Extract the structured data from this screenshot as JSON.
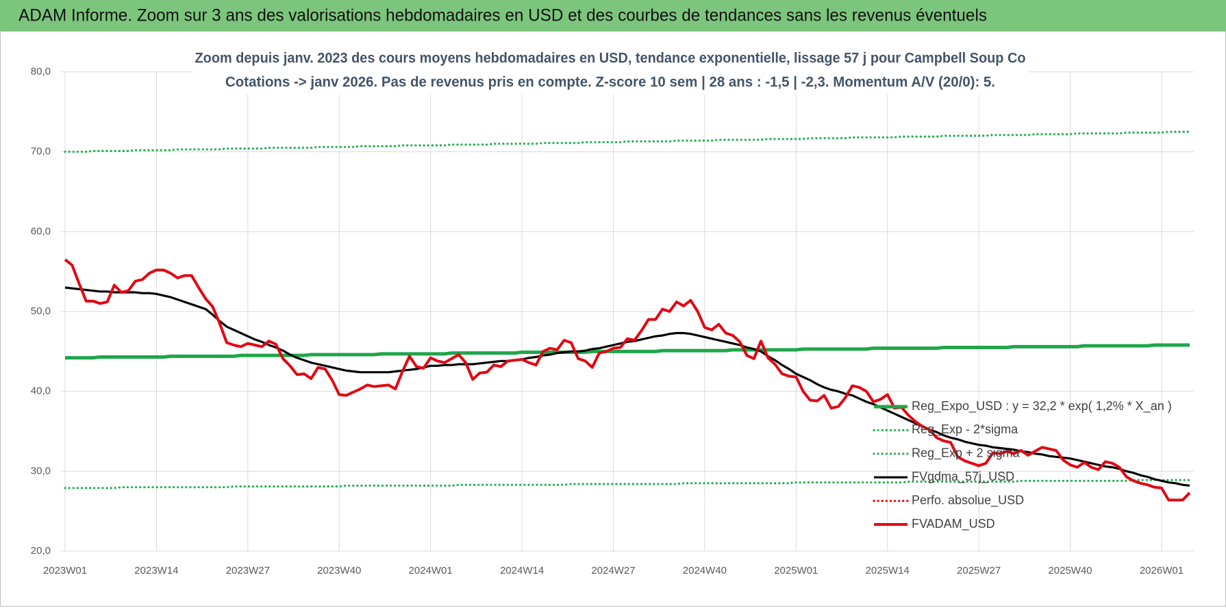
{
  "header": {
    "title": "ADAM Informe. Zoom sur 3 ans des valorisations hebdomadaires en USD et des courbes de tendances sans les revenus éventuels"
  },
  "chart_data": {
    "type": "line",
    "title": [
      "Zoom depuis janv. 2023 des cours moyens hebdomadaires en USD, tendance exponentielle, lissage 57 j pour Campbell Soup Co",
      "Cotations -> janv 2026. Pas de revenus pris en compte. Z-score 10 sem | 28 ans : -1,5 | -2,3. Momentum A/V (20/0): 5."
    ],
    "categories": [
      "2023W01",
      null,
      null,
      null,
      null,
      null,
      null,
      null,
      null,
      null,
      null,
      null,
      null,
      "2023W14",
      null,
      null,
      null,
      null,
      null,
      null,
      null,
      null,
      null,
      null,
      null,
      null,
      "2023W27",
      null,
      null,
      null,
      null,
      null,
      null,
      null,
      null,
      null,
      null,
      null,
      null,
      "2023W40",
      null,
      null,
      null,
      null,
      null,
      null,
      null,
      null,
      null,
      null,
      null,
      null,
      "2024W01",
      null,
      null,
      null,
      null,
      null,
      null,
      null,
      null,
      null,
      null,
      null,
      null,
      "2024W14",
      null,
      null,
      null,
      null,
      null,
      null,
      null,
      null,
      null,
      null,
      null,
      null,
      "2024W27",
      null,
      null,
      null,
      null,
      null,
      null,
      null,
      null,
      null,
      null,
      null,
      null,
      "2024W40",
      null,
      null,
      null,
      null,
      null,
      null,
      null,
      null,
      null,
      null,
      null,
      null,
      "2025W01",
      null,
      null,
      null,
      null,
      null,
      null,
      null,
      null,
      null,
      null,
      null,
      null,
      "2025W14",
      null,
      null,
      null,
      null,
      null,
      null,
      null,
      null,
      null,
      null,
      null,
      null,
      "2025W27",
      null,
      null,
      null,
      null,
      null,
      null,
      null,
      null,
      null,
      null,
      null,
      null,
      "2025W40",
      null,
      null,
      null,
      null,
      null,
      null,
      null,
      null,
      null,
      null,
      null,
      null,
      "2026W01",
      null,
      null,
      null,
      null
    ],
    "ylim": [
      20,
      80
    ],
    "yticks": [
      {
        "value": 20,
        "label": "20,0"
      },
      {
        "value": 30,
        "label": "30,0"
      },
      {
        "value": 40,
        "label": "40,0"
      },
      {
        "value": 50,
        "label": "50,0"
      },
      {
        "value": 60,
        "label": "60,0"
      },
      {
        "value": 70,
        "label": "70,0"
      },
      {
        "value": 80,
        "label": "80,0"
      }
    ],
    "grid": true,
    "legend": "bottom-right",
    "series": [
      {
        "name": "Reg_Expo_USD : y = 32,2 * exp( 1,2% * X_an )",
        "color": "#1fa64a",
        "style": "solid",
        "values": [
          44.2,
          44.2,
          44.2,
          44.2,
          44.2,
          44.3,
          44.3,
          44.3,
          44.3,
          44.3,
          44.3,
          44.3,
          44.3,
          44.3,
          44.3,
          44.4,
          44.4,
          44.4,
          44.4,
          44.4,
          44.4,
          44.4,
          44.4,
          44.4,
          44.4,
          44.5,
          44.5,
          44.5,
          44.5,
          44.5,
          44.5,
          44.5,
          44.5,
          44.5,
          44.5,
          44.6,
          44.6,
          44.6,
          44.6,
          44.6,
          44.6,
          44.6,
          44.6,
          44.6,
          44.6,
          44.7,
          44.7,
          44.7,
          44.7,
          44.7,
          44.7,
          44.7,
          44.7,
          44.7,
          44.7,
          44.8,
          44.8,
          44.8,
          44.8,
          44.8,
          44.8,
          44.8,
          44.8,
          44.8,
          44.8,
          44.9,
          44.9,
          44.9,
          44.9,
          44.9,
          44.9,
          44.9,
          44.9,
          44.9,
          44.9,
          45.0,
          45.0,
          45.0,
          45.0,
          45.0,
          45.0,
          45.0,
          45.0,
          45.0,
          45.0,
          45.1,
          45.1,
          45.1,
          45.1,
          45.1,
          45.1,
          45.1,
          45.1,
          45.1,
          45.1,
          45.2,
          45.2,
          45.2,
          45.2,
          45.2,
          45.2,
          45.2,
          45.2,
          45.2,
          45.2,
          45.3,
          45.3,
          45.3,
          45.3,
          45.3,
          45.3,
          45.3,
          45.3,
          45.3,
          45.3,
          45.4,
          45.4,
          45.4,
          45.4,
          45.4,
          45.4,
          45.4,
          45.4,
          45.4,
          45.4,
          45.5,
          45.5,
          45.5,
          45.5,
          45.5,
          45.5,
          45.5,
          45.5,
          45.5,
          45.5,
          45.6,
          45.6,
          45.6,
          45.6,
          45.6,
          45.6,
          45.6,
          45.6,
          45.6,
          45.6,
          45.7,
          45.7,
          45.7,
          45.7,
          45.7,
          45.7,
          45.7,
          45.7,
          45.7,
          45.7,
          45.8,
          45.8,
          45.8,
          45.8,
          45.8,
          45.8
        ]
      },
      {
        "name": "Reg_Exp - 2*sigma",
        "color": "#1fb04e",
        "style": "dotted",
        "values": [
          27.9,
          27.9,
          27.9,
          27.9,
          27.9,
          27.9,
          27.9,
          27.9,
          28.0,
          28.0,
          28.0,
          28.0,
          28.0,
          28.0,
          28.0,
          28.0,
          28.0,
          28.0,
          28.0,
          28.0,
          28.0,
          28.0,
          28.0,
          28.0,
          28.1,
          28.1,
          28.1,
          28.1,
          28.1,
          28.1,
          28.1,
          28.1,
          28.1,
          28.1,
          28.1,
          28.1,
          28.1,
          28.1,
          28.1,
          28.1,
          28.2,
          28.2,
          28.2,
          28.2,
          28.2,
          28.2,
          28.2,
          28.2,
          28.2,
          28.2,
          28.2,
          28.2,
          28.2,
          28.2,
          28.2,
          28.2,
          28.3,
          28.3,
          28.3,
          28.3,
          28.3,
          28.3,
          28.3,
          28.3,
          28.3,
          28.3,
          28.3,
          28.3,
          28.3,
          28.3,
          28.3,
          28.3,
          28.4,
          28.4,
          28.4,
          28.4,
          28.4,
          28.4,
          28.4,
          28.4,
          28.4,
          28.4,
          28.4,
          28.4,
          28.4,
          28.4,
          28.4,
          28.4,
          28.5,
          28.5,
          28.5,
          28.5,
          28.5,
          28.5,
          28.5,
          28.5,
          28.5,
          28.5,
          28.5,
          28.5,
          28.5,
          28.5,
          28.5,
          28.5,
          28.6,
          28.6,
          28.6,
          28.6,
          28.6,
          28.6,
          28.6,
          28.6,
          28.6,
          28.6,
          28.6,
          28.6,
          28.6,
          28.6,
          28.6,
          28.6,
          28.7,
          28.7,
          28.7,
          28.7,
          28.7,
          28.7,
          28.7,
          28.7,
          28.7,
          28.7,
          28.7,
          28.7,
          28.7,
          28.7,
          28.7,
          28.7,
          28.8,
          28.8,
          28.8,
          28.8,
          28.8,
          28.8,
          28.8,
          28.8,
          28.8,
          28.8,
          28.8,
          28.8,
          28.8,
          28.8,
          28.8,
          28.8,
          28.9,
          28.9,
          28.9,
          28.9,
          28.9,
          28.9,
          28.9,
          28.9,
          28.9
        ]
      },
      {
        "name": "Reg_Exp + 2 sigma",
        "color": "#1fb04e",
        "style": "dotted",
        "values": [
          70.0,
          70.0,
          70.0,
          70.0,
          70.1,
          70.1,
          70.1,
          70.1,
          70.1,
          70.1,
          70.2,
          70.2,
          70.2,
          70.2,
          70.2,
          70.2,
          70.3,
          70.3,
          70.3,
          70.3,
          70.3,
          70.3,
          70.3,
          70.4,
          70.4,
          70.4,
          70.4,
          70.4,
          70.4,
          70.5,
          70.5,
          70.5,
          70.5,
          70.5,
          70.5,
          70.5,
          70.6,
          70.6,
          70.6,
          70.6,
          70.6,
          70.6,
          70.7,
          70.7,
          70.7,
          70.7,
          70.7,
          70.7,
          70.8,
          70.8,
          70.8,
          70.8,
          70.8,
          70.8,
          70.8,
          70.9,
          70.9,
          70.9,
          70.9,
          70.9,
          70.9,
          71.0,
          71.0,
          71.0,
          71.0,
          71.0,
          71.0,
          71.0,
          71.1,
          71.1,
          71.1,
          71.1,
          71.1,
          71.1,
          71.2,
          71.2,
          71.2,
          71.2,
          71.2,
          71.2,
          71.3,
          71.3,
          71.3,
          71.3,
          71.3,
          71.3,
          71.3,
          71.4,
          71.4,
          71.4,
          71.4,
          71.4,
          71.4,
          71.5,
          71.5,
          71.5,
          71.5,
          71.5,
          71.5,
          71.5,
          71.6,
          71.6,
          71.6,
          71.6,
          71.6,
          71.6,
          71.7,
          71.7,
          71.7,
          71.7,
          71.7,
          71.7,
          71.8,
          71.8,
          71.8,
          71.8,
          71.8,
          71.8,
          71.8,
          71.9,
          71.9,
          71.9,
          71.9,
          71.9,
          71.9,
          72.0,
          72.0,
          72.0,
          72.0,
          72.0,
          72.0,
          72.0,
          72.1,
          72.1,
          72.1,
          72.1,
          72.1,
          72.1,
          72.2,
          72.2,
          72.2,
          72.2,
          72.2,
          72.2,
          72.3,
          72.3,
          72.3,
          72.3,
          72.3,
          72.3,
          72.3,
          72.4,
          72.4,
          72.4,
          72.4,
          72.4,
          72.4,
          72.5,
          72.5,
          72.5,
          72.5
        ]
      },
      {
        "name": "FVgdma_57j_USD",
        "color": "#000000",
        "style": "solid",
        "values": [
          53.0,
          52.9,
          52.8,
          52.7,
          52.6,
          52.5,
          52.5,
          52.4,
          52.4,
          52.4,
          52.4,
          52.3,
          52.3,
          52.2,
          52.0,
          51.8,
          51.5,
          51.2,
          50.9,
          50.6,
          50.3,
          49.6,
          48.8,
          48.1,
          47.7,
          47.3,
          46.9,
          46.5,
          46.2,
          45.8,
          45.5,
          45.1,
          44.6,
          44.2,
          43.9,
          43.6,
          43.4,
          43.2,
          43.0,
          42.8,
          42.6,
          42.5,
          42.4,
          42.4,
          42.4,
          42.4,
          42.4,
          42.5,
          42.6,
          42.7,
          42.8,
          43.0,
          43.2,
          43.2,
          43.3,
          43.3,
          43.4,
          43.4,
          43.4,
          43.5,
          43.6,
          43.7,
          43.8,
          43.8,
          43.9,
          44.0,
          44.2,
          44.3,
          44.5,
          44.6,
          44.8,
          44.9,
          45.0,
          45.0,
          45.1,
          45.3,
          45.4,
          45.6,
          45.8,
          46.0,
          46.2,
          46.3,
          46.5,
          46.7,
          46.9,
          47.0,
          47.2,
          47.3,
          47.3,
          47.2,
          47.0,
          46.8,
          46.6,
          46.4,
          46.2,
          46.0,
          45.8,
          45.5,
          45.3,
          45.0,
          44.4,
          43.9,
          43.3,
          42.8,
          42.2,
          41.8,
          41.4,
          40.9,
          40.5,
          40.2,
          40.0,
          39.7,
          39.5,
          39.1,
          38.7,
          38.4,
          38.0,
          37.6,
          37.2,
          36.8,
          36.4,
          36.0,
          35.6,
          35.2,
          34.9,
          34.5,
          34.2,
          34.0,
          33.7,
          33.5,
          33.3,
          33.2,
          33.0,
          32.9,
          32.8,
          32.7,
          32.5,
          32.4,
          32.2,
          32.1,
          31.9,
          31.8,
          31.7,
          31.6,
          31.4,
          31.2,
          31.0,
          30.8,
          30.6,
          30.5,
          30.3,
          30.0,
          29.8,
          29.5,
          29.3,
          29.0,
          28.8,
          28.6,
          28.5,
          28.3,
          28.2
        ]
      },
      {
        "name": "Perfo. absolue_USD",
        "color": "#e30613",
        "style": "dotted",
        "values": [
          null,
          null,
          null,
          null,
          null,
          null,
          null,
          null,
          null,
          null,
          null,
          null,
          null,
          null,
          null,
          null,
          null,
          null,
          null,
          null,
          null,
          null,
          null,
          null,
          null,
          null,
          null,
          null,
          null,
          null,
          null,
          null,
          null,
          null,
          null,
          null,
          null,
          null,
          null,
          null,
          null,
          null,
          null,
          null,
          null,
          null,
          null,
          null,
          null,
          null,
          null,
          null,
          null,
          null,
          null,
          null,
          null,
          null,
          null,
          null,
          null,
          null,
          null,
          null,
          null,
          null,
          null,
          null,
          null,
          null,
          null,
          null,
          null,
          null,
          null,
          null,
          null,
          null,
          null,
          null,
          null,
          null,
          null,
          null,
          null,
          null,
          null,
          null,
          null,
          null,
          null,
          null,
          null,
          null,
          null,
          null,
          null,
          null,
          null,
          null,
          null,
          null,
          null,
          null,
          null,
          null,
          null,
          null,
          null,
          null,
          null,
          null,
          null,
          null,
          null,
          null,
          null,
          null,
          null,
          null,
          null,
          null,
          null,
          null,
          null,
          null,
          null,
          null,
          null,
          null,
          null,
          null,
          null,
          null,
          null,
          null,
          null,
          null,
          null,
          null,
          null,
          null,
          null,
          null,
          null,
          null,
          null,
          null,
          null,
          null,
          null,
          null,
          null,
          null,
          null,
          null,
          null,
          null,
          null,
          null,
          null
        ]
      },
      {
        "name": "FVADAM_USD",
        "color": "#e30613",
        "style": "solid",
        "values": [
          56.5,
          55.8,
          53.5,
          51.3,
          51.3,
          51.0,
          51.2,
          53.3,
          52.4,
          52.6,
          53.8,
          54.0,
          54.8,
          55.2,
          55.2,
          54.8,
          54.2,
          54.5,
          54.5,
          53.0,
          51.6,
          50.6,
          48.5,
          46.1,
          45.8,
          45.6,
          46.0,
          45.8,
          45.6,
          46.3,
          45.9,
          44.1,
          43.2,
          42.1,
          42.2,
          41.6,
          43.0,
          42.8,
          41.4,
          39.6,
          39.5,
          39.9,
          40.3,
          40.8,
          40.6,
          40.7,
          40.8,
          40.3,
          42.5,
          44.4,
          43.1,
          42.9,
          44.2,
          43.8,
          43.6,
          44.1,
          44.6,
          43.6,
          41.5,
          42.3,
          42.4,
          43.3,
          43.1,
          43.8,
          43.9,
          44.0,
          43.6,
          43.3,
          45.0,
          45.4,
          45.2,
          46.4,
          46.1,
          44.1,
          43.8,
          43.0,
          44.8,
          45.0,
          45.4,
          45.5,
          46.6,
          46.4,
          47.6,
          49.0,
          49.0,
          50.3,
          50.0,
          51.2,
          50.7,
          51.4,
          50.0,
          48.0,
          47.7,
          48.4,
          47.3,
          47.0,
          46.2,
          44.5,
          44.1,
          46.3,
          44.2,
          43.4,
          42.2,
          41.9,
          41.8,
          40.0,
          38.9,
          38.8,
          39.5,
          37.9,
          38.1,
          39.2,
          40.7,
          40.5,
          40.0,
          38.7,
          39.0,
          39.6,
          37.9,
          38.0,
          37.0,
          36.2,
          35.6,
          35.2,
          34.2,
          33.8,
          33.6,
          31.8,
          31.3,
          31.0,
          30.7,
          31.0,
          32.3,
          32.2,
          32.5,
          32.2,
          32.6,
          32.0,
          32.5,
          33.0,
          32.8,
          32.6,
          31.4,
          30.8,
          30.5,
          31.1,
          30.5,
          30.2,
          31.2,
          31.0,
          30.5,
          29.3,
          28.8,
          28.5,
          28.3,
          28.0,
          27.9,
          26.4,
          26.4,
          26.4,
          27.3
        ]
      }
    ]
  }
}
